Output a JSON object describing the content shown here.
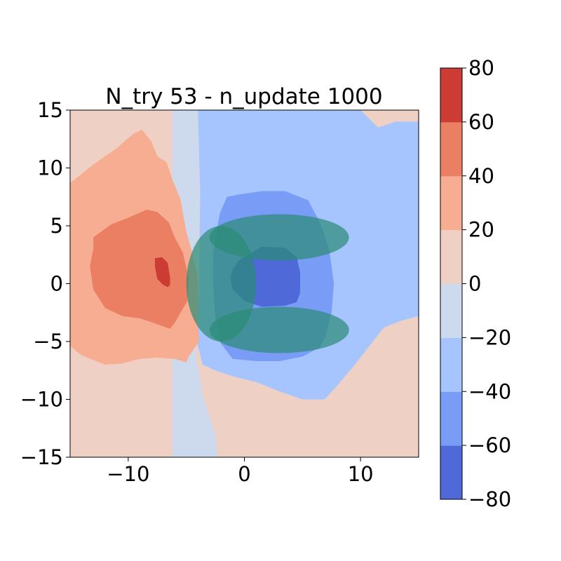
{
  "chart_data": {
    "type": "heatmap",
    "subtype": "filled-contour",
    "title": "N_try 53 - n_update 1000",
    "xlabel": "",
    "ylabel": "",
    "xlim": [
      -15,
      15
    ],
    "ylim": [
      -15,
      15
    ],
    "x_ticks": [
      -10,
      0,
      10
    ],
    "x_tick_labels": [
      "−10",
      "0",
      "10"
    ],
    "y_ticks": [
      -15,
      -10,
      -5,
      0,
      5,
      10,
      15
    ],
    "y_tick_labels": [
      "−15",
      "−10",
      "−5",
      "0",
      "5",
      "10",
      "15"
    ],
    "grid": false,
    "legend": "none",
    "colormap": "coolwarm",
    "colorbar": {
      "levels": [
        -80,
        -60,
        -40,
        -20,
        0,
        20,
        40,
        60,
        80
      ],
      "tick_labels": [
        "−80",
        "−60",
        "−40",
        "−20",
        "0",
        "20",
        "40",
        "60",
        "80"
      ],
      "band_colors": [
        "#4f69d9",
        "#799cf7",
        "#a6c4fe",
        "#cdd9ec",
        "#eed1c4",
        "#f7ad91",
        "#eb7f64",
        "#cc3c35"
      ]
    },
    "contour_bands": [
      {
        "range": [
          -20,
          0
        ],
        "points": [
          [
            -6.2,
            15
          ],
          [
            -4,
            15
          ],
          [
            -3.8,
            8
          ],
          [
            -4,
            0
          ],
          [
            -4.2,
            -6
          ],
          [
            -3.5,
            -10
          ],
          [
            -2.5,
            -13
          ],
          [
            -2.3,
            -15
          ],
          [
            -6.2,
            -15
          ]
        ]
      },
      {
        "range": [
          -40,
          -20
        ],
        "points": [
          [
            -4,
            15
          ],
          [
            10,
            15
          ],
          [
            11.5,
            13.5
          ],
          [
            13,
            14
          ],
          [
            15,
            14
          ],
          [
            15,
            -2.8
          ],
          [
            13.5,
            -3.2
          ],
          [
            12,
            -3.8
          ],
          [
            9.5,
            -7
          ],
          [
            8,
            -8.8
          ],
          [
            6.9,
            -10
          ],
          [
            5,
            -10
          ],
          [
            3,
            -9.3
          ],
          [
            1,
            -8.5
          ],
          [
            -1,
            -8
          ],
          [
            -2.5,
            -7.5
          ],
          [
            -3.6,
            -7
          ],
          [
            -4.1,
            -5
          ],
          [
            -3.9,
            0
          ],
          [
            -3.8,
            8
          ]
        ]
      },
      {
        "range": [
          20,
          40
        ],
        "points": [
          [
            -15,
            8.7
          ],
          [
            -13,
            10.3
          ],
          [
            -11,
            11.7
          ],
          [
            -9.5,
            13
          ],
          [
            -8.8,
            13.3
          ],
          [
            -8,
            12.3
          ],
          [
            -7.5,
            11
          ],
          [
            -6.7,
            10.5
          ],
          [
            -6.2,
            9
          ],
          [
            -5.5,
            7.3
          ],
          [
            -5,
            4.5
          ],
          [
            -4.5,
            2.7
          ],
          [
            -4,
            0.5
          ],
          [
            -4,
            -3
          ],
          [
            -3.9,
            -5
          ],
          [
            -4.8,
            -6.3
          ],
          [
            -5,
            -6.8
          ],
          [
            -6,
            -6.5
          ],
          [
            -7.5,
            -6.4
          ],
          [
            -9,
            -6.5
          ],
          [
            -10.5,
            -6.9
          ],
          [
            -12,
            -7
          ],
          [
            -14,
            -6.2
          ],
          [
            -15,
            -5.4
          ]
        ]
      },
      {
        "range": [
          40,
          60
        ],
        "points": [
          [
            -13,
            4
          ],
          [
            -11.5,
            5.1
          ],
          [
            -10,
            5.7
          ],
          [
            -8.4,
            6.4
          ],
          [
            -7.5,
            6.2
          ],
          [
            -6.5,
            5.3
          ],
          [
            -6,
            4
          ],
          [
            -5.3,
            2.7
          ],
          [
            -4.8,
            0.5
          ],
          [
            -4.9,
            -1.5
          ],
          [
            -5.5,
            -2.5
          ],
          [
            -6,
            -3.4
          ],
          [
            -6.4,
            -3.9
          ],
          [
            -7.5,
            -3.5
          ],
          [
            -9,
            -3
          ],
          [
            -10.5,
            -2.8
          ],
          [
            -12,
            -2.1
          ],
          [
            -13,
            -0.5
          ],
          [
            -13.3,
            1.5
          ],
          [
            -13,
            3
          ]
        ]
      },
      {
        "range": [
          60,
          80
        ],
        "points": [
          [
            -7.7,
            2.2
          ],
          [
            -7.1,
            2.3
          ],
          [
            -6.6,
            1.8
          ],
          [
            -6.4,
            0.5
          ],
          [
            -6.4,
            -0.1
          ],
          [
            -6.6,
            -0.3
          ],
          [
            -7,
            -0.1
          ],
          [
            -7.5,
            0.4
          ],
          [
            -7.7,
            1.5
          ]
        ]
      },
      {
        "range": [
          -60,
          -40
        ],
        "points": [
          [
            -2.1,
            6.1
          ],
          [
            -1.5,
            7.5
          ],
          [
            -0.5,
            7.7
          ],
          [
            1.5,
            8
          ],
          [
            3.5,
            8
          ],
          [
            5.5,
            7.2
          ],
          [
            6.5,
            5.3
          ],
          [
            7.3,
            3
          ],
          [
            7.7,
            0
          ],
          [
            7.5,
            -2.5
          ],
          [
            7,
            -4.5
          ],
          [
            6.5,
            -5.5
          ],
          [
            5,
            -6.3
          ],
          [
            3,
            -6.7
          ],
          [
            1,
            -6.7
          ],
          [
            -1,
            -6.5
          ],
          [
            -2,
            -5.2
          ],
          [
            -2.5,
            -3
          ],
          [
            -2.7,
            0
          ],
          [
            -2.7,
            2.5
          ],
          [
            -2.3,
            5
          ]
        ]
      },
      {
        "range": [
          -80,
          -60
        ],
        "points": [
          [
            -1,
            1.2
          ],
          [
            -0.5,
            2
          ],
          [
            1.5,
            3.2
          ],
          [
            3.5,
            3.1
          ],
          [
            4.5,
            2.3
          ],
          [
            4.8,
            1
          ],
          [
            4.8,
            -0.8
          ],
          [
            4.5,
            -1.6
          ],
          [
            3.5,
            -1.9
          ],
          [
            1.5,
            -2
          ],
          [
            0,
            -1.5
          ],
          [
            -1,
            -0.5
          ],
          [
            -1.2,
            0.5
          ]
        ]
      }
    ],
    "overlay_ellipses": [
      {
        "cx": 3,
        "cy": 4,
        "rx": 6,
        "ry": 2,
        "color": "#2a8c75",
        "opacity": 0.7
      },
      {
        "cx": 3,
        "cy": -4,
        "rx": 6,
        "ry": 2,
        "color": "#2a8c75",
        "opacity": 0.7
      },
      {
        "cx": -2,
        "cy": 0,
        "rx": 3,
        "ry": 5,
        "color": "#2a8c75",
        "opacity": 0.7
      }
    ]
  }
}
